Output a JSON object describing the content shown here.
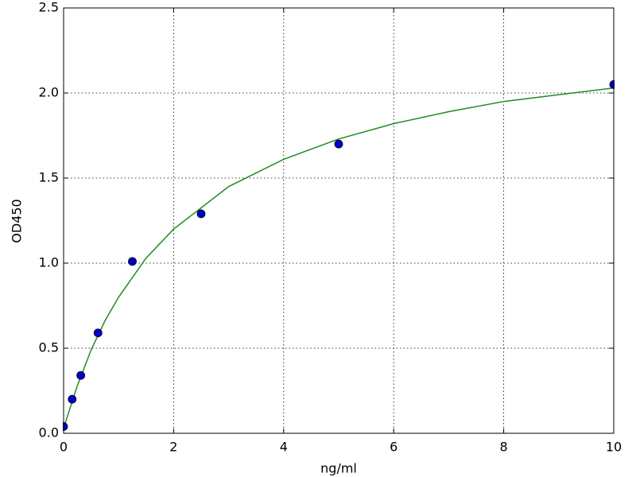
{
  "chart_data": {
    "type": "scatter",
    "xlabel": "ng/ml",
    "ylabel": "OD450",
    "xlim": [
      0,
      10
    ],
    "xticks": [
      0,
      2,
      4,
      6,
      8,
      10
    ],
    "ylim": [
      0,
      2.5
    ],
    "yticks": [
      {
        "value": 0,
        "label": "0.0"
      },
      {
        "value": 0.5,
        "label": "0.5"
      },
      {
        "value": 1,
        "label": "1.0"
      },
      {
        "value": 1.5,
        "label": "1.5"
      },
      {
        "value": 2,
        "label": "2.0"
      },
      {
        "value": 2.5,
        "label": "2.5"
      }
    ],
    "grid": true,
    "series": [
      {
        "type": "scatter",
        "color": "#0000cc",
        "x": [
          0,
          0.156,
          0.3125,
          0.625,
          1.25,
          2.5,
          5,
          10
        ],
        "values": [
          0.04,
          0.2,
          0.34,
          0.59,
          1.01,
          1.29,
          1.7,
          2.05
        ]
      },
      {
        "type": "line",
        "color": "#228b22",
        "x": [
          0,
          0.25,
          0.5,
          0.75,
          1,
          1.5,
          2,
          3,
          4,
          5,
          6,
          7,
          8,
          9,
          10
        ],
        "values": [
          0.03,
          0.28,
          0.49,
          0.66,
          0.8,
          1.03,
          1.2,
          1.45,
          1.61,
          1.73,
          1.82,
          1.89,
          1.95,
          1.99,
          2.03
        ]
      }
    ]
  }
}
